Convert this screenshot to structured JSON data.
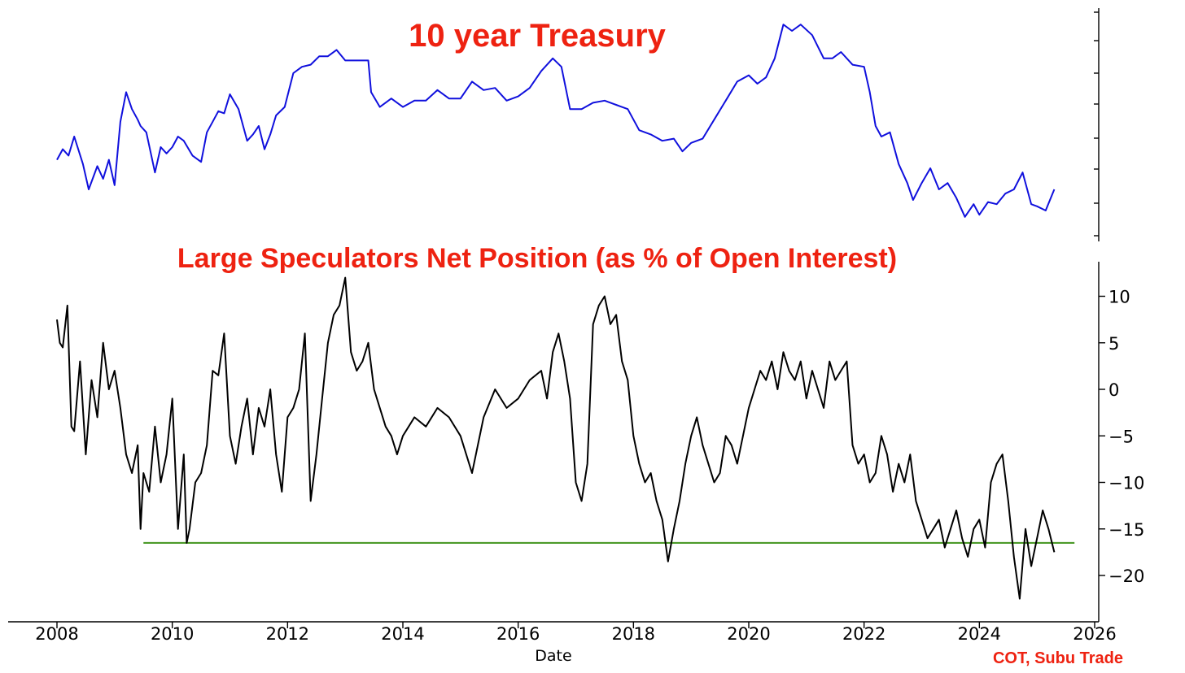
{
  "chart_data": [
    {
      "type": "line",
      "title": "10 year Treasury",
      "xlim": [
        2008.0,
        2026.0
      ],
      "y_tick_labels_shown": false,
      "y_axis_side": "right",
      "y_range_relative": [
        0,
        100
      ],
      "series": [
        {
          "color": "#1010dd",
          "x": [
            2008.0,
            2008.1,
            2008.2,
            2008.3,
            2008.45,
            2008.55,
            2008.7,
            2008.8,
            2008.9,
            2009.0,
            2009.1,
            2009.2,
            2009.3,
            2009.4,
            2009.45,
            2009.55,
            2009.7,
            2009.8,
            2009.9,
            2010.0,
            2010.1,
            2010.2,
            2010.35,
            2010.5,
            2010.6,
            2010.7,
            2010.8,
            2010.9,
            2011.0,
            2011.15,
            2011.3,
            2011.4,
            2011.5,
            2011.6,
            2011.7,
            2011.8,
            2011.95,
            2012.1,
            2012.25,
            2012.4,
            2012.55,
            2012.7,
            2012.85,
            2013.0,
            2013.15,
            2013.3,
            2013.4,
            2013.45,
            2013.6,
            2013.8,
            2014.0,
            2014.2,
            2014.4,
            2014.6,
            2014.8,
            2015.0,
            2015.2,
            2015.4,
            2015.6,
            2015.8,
            2016.0,
            2016.2,
            2016.4,
            2016.6,
            2016.75,
            2016.9,
            2017.1,
            2017.3,
            2017.5,
            2017.7,
            2017.9,
            2018.1,
            2018.3,
            2018.5,
            2018.7,
            2018.85,
            2019.0,
            2019.2,
            2019.4,
            2019.6,
            2019.8,
            2020.0,
            2020.15,
            2020.3,
            2020.45,
            2020.6,
            2020.75,
            2020.9,
            2021.1,
            2021.3,
            2021.45,
            2021.6,
            2021.8,
            2022.0,
            2022.1,
            2022.2,
            2022.3,
            2022.45,
            2022.6,
            2022.75,
            2022.85,
            2023.0,
            2023.15,
            2023.3,
            2023.45,
            2023.6,
            2023.75,
            2023.9,
            2024.0,
            2024.15,
            2024.3,
            2024.45,
            2024.6,
            2024.75,
            2024.9,
            2025.0,
            2025.15,
            2025.3
          ],
          "y": [
            34.0,
            39.0,
            36.0,
            45.0,
            32.0,
            20.0,
            31.0,
            25.0,
            34.0,
            22.0,
            52.0,
            66.0,
            58.0,
            53.0,
            50.0,
            47.0,
            28.0,
            40.0,
            37.0,
            40.0,
            45.0,
            43.0,
            36.0,
            33.0,
            47.0,
            52.0,
            57.0,
            56.0,
            65.0,
            58.0,
            43.0,
            46.0,
            50.0,
            39.0,
            46.0,
            55.0,
            59.0,
            75.0,
            78.0,
            79.0,
            83.0,
            83.0,
            86.0,
            81.0,
            81.0,
            81.0,
            81.0,
            66.0,
            59.0,
            63.0,
            59.0,
            62.0,
            62.0,
            67.0,
            63.0,
            63.0,
            71.0,
            67.0,
            68.0,
            62.0,
            64.0,
            68.0,
            76.0,
            82.0,
            78.0,
            58.0,
            58.0,
            61.0,
            62.0,
            60.0,
            58.0,
            48.0,
            46.0,
            43.0,
            44.0,
            38.0,
            42.0,
            44.0,
            53.0,
            62.0,
            71.0,
            74.0,
            70.0,
            73.0,
            82.0,
            98.0,
            95.0,
            98.0,
            93.0,
            82.0,
            82.0,
            85.0,
            79.0,
            78.0,
            66.0,
            50.0,
            45.0,
            47.0,
            32.0,
            23.0,
            15.0,
            23.0,
            30.0,
            20.0,
            23.0,
            16.0,
            7.0,
            13.0,
            8.0,
            14.0,
            13.0,
            18.0,
            20.0,
            28.0,
            13.0,
            12.0,
            10.0,
            20.0
          ]
        }
      ]
    },
    {
      "type": "line",
      "title": "Large Speculators Net Position (as % of Open Interest)",
      "xlabel": "Date",
      "xlim": [
        2008.0,
        2026.0
      ],
      "ylim": [
        -24.5,
        14
      ],
      "y_axis_side": "right",
      "x_ticks": [
        "2008",
        "2010",
        "2012",
        "2014",
        "2016",
        "2018",
        "2020",
        "2022",
        "2024",
        "2026"
      ],
      "x_tick_values": [
        2008,
        2010,
        2012,
        2014,
        2016,
        2018,
        2020,
        2022,
        2024,
        2026
      ],
      "y_ticks": [
        "10",
        "5",
        "0",
        "−5",
        "−10",
        "−15",
        "−20"
      ],
      "y_tick_values": [
        10,
        5,
        0,
        -5,
        -10,
        -15,
        -20
      ],
      "reference_line": {
        "y": -16.5,
        "x_start": 2009.5,
        "x_end": 2025.65,
        "color": "#4c9a2a"
      },
      "series": [
        {
          "color": "#000000",
          "x": [
            2008.0,
            2008.05,
            2008.1,
            2008.18,
            2008.25,
            2008.3,
            2008.4,
            2008.5,
            2008.6,
            2008.7,
            2008.8,
            2008.9,
            2009.0,
            2009.1,
            2009.2,
            2009.3,
            2009.4,
            2009.45,
            2009.5,
            2009.6,
            2009.7,
            2009.8,
            2009.9,
            2010.0,
            2010.1,
            2010.2,
            2010.25,
            2010.3,
            2010.4,
            2010.5,
            2010.6,
            2010.7,
            2010.8,
            2010.9,
            2011.0,
            2011.1,
            2011.2,
            2011.3,
            2011.4,
            2011.5,
            2011.6,
            2011.7,
            2011.8,
            2011.9,
            2012.0,
            2012.1,
            2012.2,
            2012.3,
            2012.4,
            2012.5,
            2012.6,
            2012.7,
            2012.8,
            2012.9,
            2013.0,
            2013.1,
            2013.2,
            2013.3,
            2013.4,
            2013.5,
            2013.6,
            2013.7,
            2013.8,
            2013.9,
            2014.0,
            2014.2,
            2014.4,
            2014.6,
            2014.8,
            2015.0,
            2015.2,
            2015.4,
            2015.6,
            2015.8,
            2016.0,
            2016.2,
            2016.4,
            2016.5,
            2016.6,
            2016.7,
            2016.8,
            2016.9,
            2017.0,
            2017.1,
            2017.2,
            2017.3,
            2017.4,
            2017.5,
            2017.6,
            2017.7,
            2017.8,
            2017.9,
            2018.0,
            2018.1,
            2018.2,
            2018.3,
            2018.4,
            2018.5,
            2018.6,
            2018.7,
            2018.8,
            2018.9,
            2019.0,
            2019.1,
            2019.2,
            2019.3,
            2019.4,
            2019.5,
            2019.6,
            2019.7,
            2019.8,
            2019.9,
            2020.0,
            2020.1,
            2020.2,
            2020.3,
            2020.4,
            2020.5,
            2020.6,
            2020.7,
            2020.8,
            2020.9,
            2021.0,
            2021.1,
            2021.2,
            2021.3,
            2021.4,
            2021.5,
            2021.6,
            2021.7,
            2021.8,
            2021.9,
            2022.0,
            2022.1,
            2022.2,
            2022.3,
            2022.4,
            2022.5,
            2022.6,
            2022.7,
            2022.8,
            2022.9,
            2023.0,
            2023.1,
            2023.2,
            2023.3,
            2023.4,
            2023.5,
            2023.6,
            2023.7,
            2023.8,
            2023.9,
            2024.0,
            2024.1,
            2024.2,
            2024.3,
            2024.4,
            2024.5,
            2024.6,
            2024.7,
            2024.8,
            2024.9,
            2025.0,
            2025.1,
            2025.2,
            2025.3
          ],
          "y": [
            7.5,
            5.0,
            4.5,
            9.0,
            -4.0,
            -4.5,
            3.0,
            -7.0,
            1.0,
            -3.0,
            5.0,
            0.0,
            2.0,
            -2.0,
            -7.0,
            -9.0,
            -6.0,
            -15.0,
            -9.0,
            -11.0,
            -4.0,
            -10.0,
            -7.0,
            -1.0,
            -15.0,
            -7.0,
            -16.5,
            -15.0,
            -10.0,
            -9.0,
            -6.0,
            2.0,
            1.5,
            6.0,
            -5.0,
            -8.0,
            -4.0,
            -1.0,
            -7.0,
            -2.0,
            -4.0,
            0.0,
            -7.0,
            -11.0,
            -3.0,
            -2.0,
            0.0,
            6.0,
            -12.0,
            -7.0,
            -1.0,
            5.0,
            8.0,
            9.0,
            12.0,
            4.0,
            2.0,
            3.0,
            5.0,
            0.0,
            -2.0,
            -4.0,
            -5.0,
            -7.0,
            -5.0,
            -3.0,
            -4.0,
            -2.0,
            -3.0,
            -5.0,
            -9.0,
            -3.0,
            0.0,
            -2.0,
            -1.0,
            1.0,
            2.0,
            -1.0,
            4.0,
            6.0,
            3.0,
            -1.0,
            -10.0,
            -12.0,
            -8.0,
            7.0,
            9.0,
            10.0,
            7.0,
            8.0,
            3.0,
            1.0,
            -5.0,
            -8.0,
            -10.0,
            -9.0,
            -12.0,
            -14.0,
            -18.5,
            -15.0,
            -12.0,
            -8.0,
            -5.0,
            -3.0,
            -6.0,
            -8.0,
            -10.0,
            -9.0,
            -5.0,
            -6.0,
            -8.0,
            -5.0,
            -2.0,
            0.0,
            2.0,
            1.0,
            3.0,
            0.0,
            4.0,
            2.0,
            1.0,
            3.0,
            -1.0,
            2.0,
            0.0,
            -2.0,
            3.0,
            1.0,
            2.0,
            3.0,
            -6.0,
            -8.0,
            -7.0,
            -10.0,
            -9.0,
            -5.0,
            -7.0,
            -11.0,
            -8.0,
            -10.0,
            -7.0,
            -12.0,
            -14.0,
            -16.0,
            -15.0,
            -14.0,
            -17.0,
            -15.0,
            -13.0,
            -16.0,
            -18.0,
            -15.0,
            -14.0,
            -17.0,
            -10.0,
            -8.0,
            -7.0,
            -12.0,
            -18.0,
            -22.5,
            -15.0,
            -19.0,
            -16.0,
            -13.0,
            -15.0,
            -17.5
          ]
        }
      ]
    }
  ],
  "source": "COT, Subu Trade"
}
